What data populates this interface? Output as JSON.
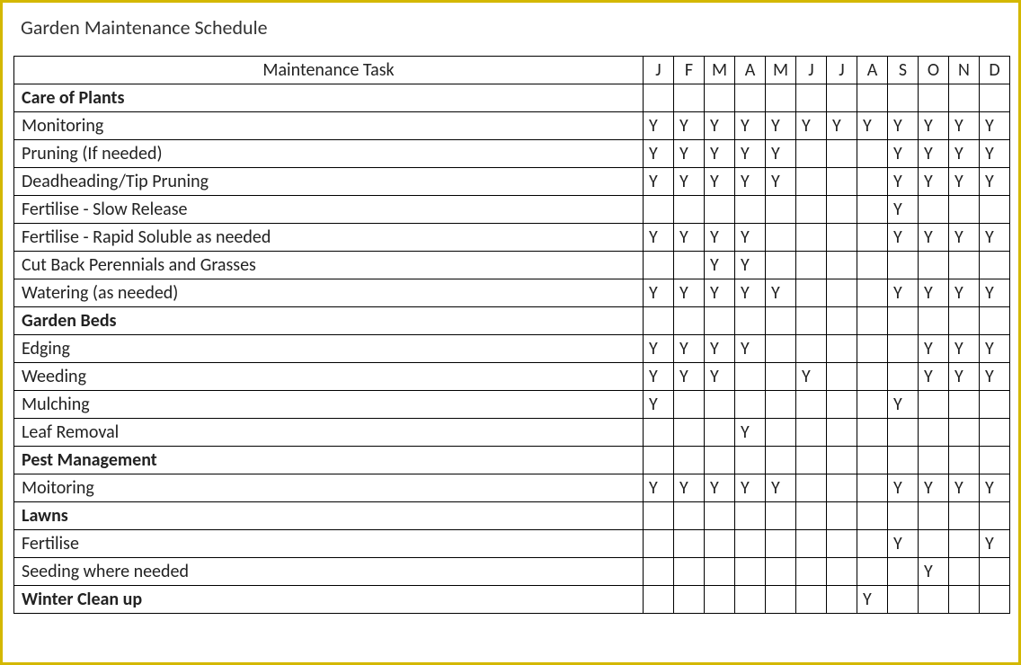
{
  "title": "Garden Maintenance Schedule",
  "task_header": "Maintenance Task",
  "months": [
    "J",
    "F",
    "M",
    "A",
    "M",
    "J",
    "J",
    "A",
    "S",
    "O",
    "N",
    "D"
  ],
  "mark": "Y",
  "rows": [
    {
      "type": "section",
      "label": "Care of Plants"
    },
    {
      "type": "task",
      "label": "Monitoring",
      "months": [
        1,
        1,
        1,
        1,
        1,
        1,
        1,
        1,
        1,
        1,
        1,
        1
      ]
    },
    {
      "type": "task",
      "label": "Pruning (If needed)",
      "months": [
        1,
        1,
        1,
        1,
        1,
        0,
        0,
        0,
        1,
        1,
        1,
        1
      ]
    },
    {
      "type": "task",
      "label": "Deadheading/Tip Pruning",
      "months": [
        1,
        1,
        1,
        1,
        1,
        0,
        0,
        0,
        1,
        1,
        1,
        1
      ]
    },
    {
      "type": "task",
      "label": "Fertilise - Slow Release",
      "months": [
        0,
        0,
        0,
        0,
        0,
        0,
        0,
        0,
        1,
        0,
        0,
        0
      ]
    },
    {
      "type": "task",
      "label": "Fertilise - Rapid Soluble as needed",
      "months": [
        1,
        1,
        1,
        1,
        0,
        0,
        0,
        0,
        1,
        1,
        1,
        1
      ]
    },
    {
      "type": "task",
      "label": "Cut Back Perennials and Grasses",
      "months": [
        0,
        0,
        1,
        1,
        0,
        0,
        0,
        0,
        0,
        0,
        0,
        0
      ]
    },
    {
      "type": "task",
      "label": "Watering (as needed)",
      "months": [
        1,
        1,
        1,
        1,
        1,
        0,
        0,
        0,
        1,
        1,
        1,
        1
      ]
    },
    {
      "type": "section",
      "label": "Garden Beds"
    },
    {
      "type": "task",
      "label": "Edging",
      "months": [
        1,
        1,
        1,
        1,
        0,
        0,
        0,
        0,
        0,
        1,
        1,
        1
      ]
    },
    {
      "type": "task",
      "label": "Weeding",
      "months": [
        1,
        1,
        1,
        0,
        0,
        1,
        0,
        0,
        0,
        1,
        1,
        1
      ]
    },
    {
      "type": "task",
      "label": "Mulching",
      "months": [
        1,
        0,
        0,
        0,
        0,
        0,
        0,
        0,
        1,
        0,
        0,
        0
      ]
    },
    {
      "type": "task",
      "label": "Leaf Removal",
      "months": [
        0,
        0,
        0,
        1,
        0,
        0,
        0,
        0,
        0,
        0,
        0,
        0
      ]
    },
    {
      "type": "section",
      "label": "Pest Management"
    },
    {
      "type": "task",
      "label": "Moitoring",
      "months": [
        1,
        1,
        1,
        1,
        1,
        0,
        0,
        0,
        1,
        1,
        1,
        1
      ]
    },
    {
      "type": "section",
      "label": "Lawns"
    },
    {
      "type": "task",
      "label": "Fertilise",
      "months": [
        0,
        0,
        0,
        0,
        0,
        0,
        0,
        0,
        1,
        0,
        0,
        1
      ]
    },
    {
      "type": "task",
      "label": "Seeding where needed",
      "months": [
        0,
        0,
        0,
        0,
        0,
        0,
        0,
        0,
        0,
        1,
        0,
        0
      ]
    },
    {
      "type": "section_marked",
      "label": "Winter Clean up",
      "months": [
        0,
        0,
        0,
        0,
        0,
        0,
        0,
        1,
        0,
        0,
        0,
        0
      ]
    }
  ]
}
